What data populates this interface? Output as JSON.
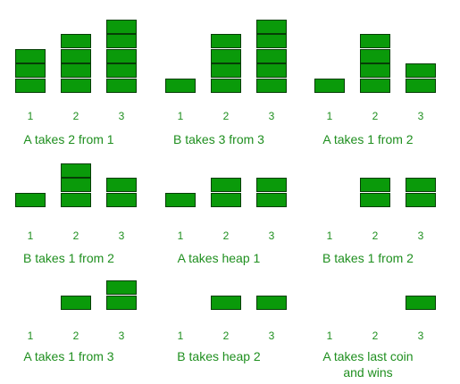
{
  "colors": {
    "coin_fill": "#0a9a0a",
    "coin_border": "#063d06",
    "text": "#1f8f1f",
    "background": "#ffffff"
  },
  "heap_labels": [
    "1",
    "2",
    "3"
  ],
  "steps": [
    {
      "caption": "A takes 2 from 1",
      "heaps": [
        3,
        4,
        5
      ]
    },
    {
      "caption": "B takes 3 from 3",
      "heaps": [
        1,
        4,
        5
      ]
    },
    {
      "caption": "A takes 1 from 2",
      "heaps": [
        1,
        4,
        2
      ]
    },
    {
      "caption": "B takes 1 from 2",
      "heaps": [
        1,
        3,
        2
      ]
    },
    {
      "caption": "A takes heap 1",
      "heaps": [
        1,
        2,
        2
      ]
    },
    {
      "caption": "B takes 1 from 2",
      "heaps": [
        0,
        2,
        2
      ]
    },
    {
      "caption": "A takes 1 from 3",
      "heaps": [
        0,
        1,
        2
      ]
    },
    {
      "caption": "B takes heap 2",
      "heaps": [
        0,
        1,
        1
      ]
    },
    {
      "caption": "A takes last coin\nand wins",
      "heaps": [
        0,
        0,
        1
      ]
    }
  ]
}
